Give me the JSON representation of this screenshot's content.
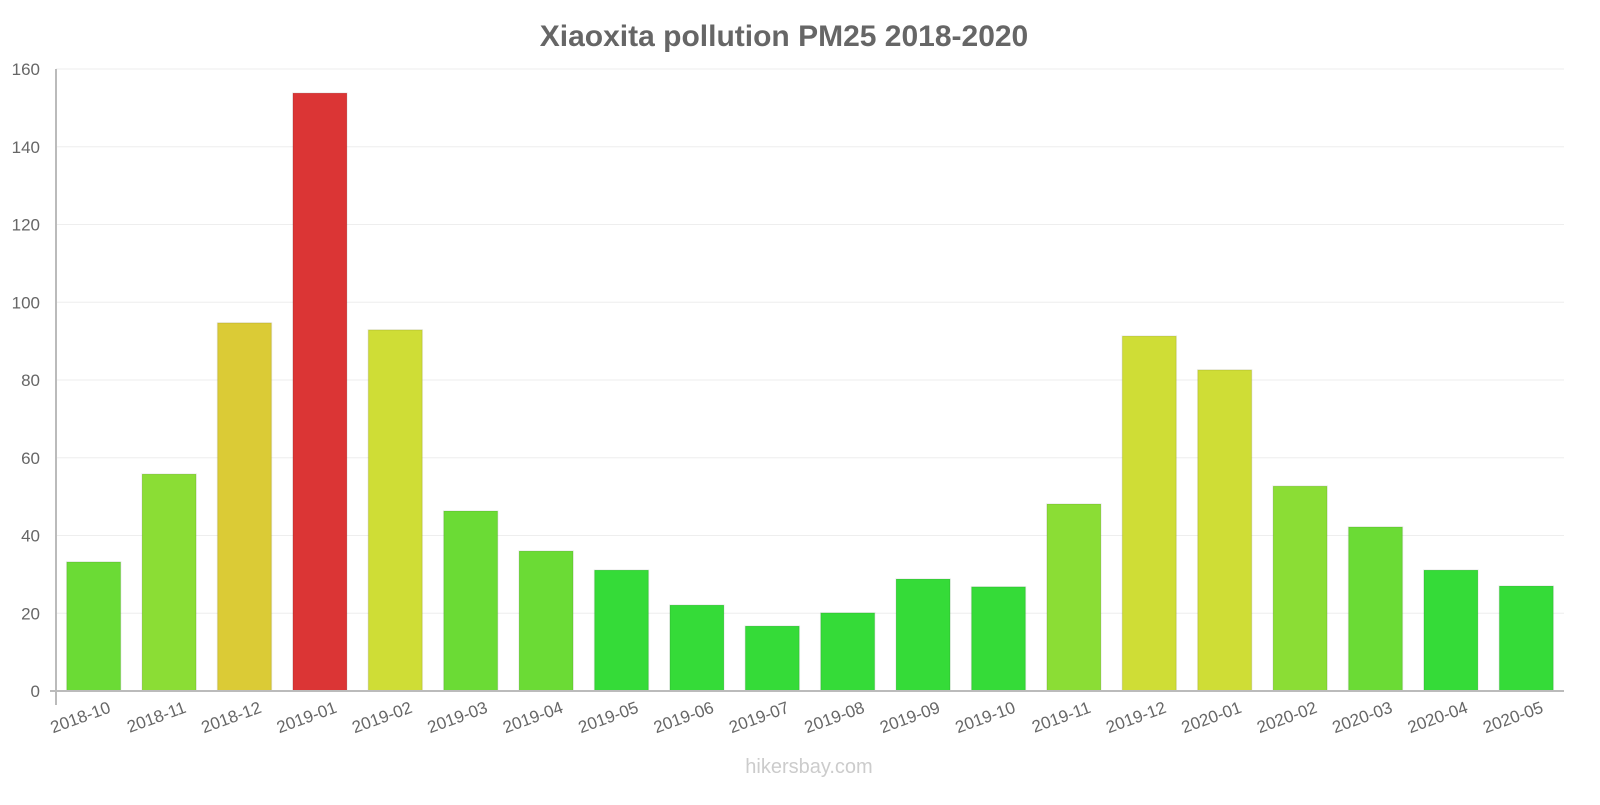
{
  "chart_data": {
    "type": "bar",
    "title": "Xiaoxita pollution PM25 2018-2020",
    "xlabel": "",
    "ylabel": "",
    "ylim": [
      0,
      160
    ],
    "yticks": [
      0,
      20,
      40,
      60,
      80,
      100,
      120,
      140,
      160
    ],
    "grid": true,
    "categories": [
      "2018-10",
      "2018-11",
      "2018-12",
      "2019-01",
      "2019-02",
      "2019-03",
      "2019-04",
      "2019-05",
      "2019-06",
      "2019-07",
      "2019-08",
      "2019-09",
      "2019-10",
      "2019-11",
      "2019-12",
      "2020-01",
      "2020-02",
      "2020-03",
      "2020-04",
      "2020-05"
    ],
    "values": [
      33.2,
      55.8,
      94.7,
      153.8,
      92.9,
      46.3,
      36.0,
      31.1,
      22.1,
      16.7,
      20.1,
      28.8,
      26.8,
      48.1,
      91.3,
      82.6,
      52.7,
      42.2,
      31.1,
      27.0
    ],
    "colors": [
      "#6bdb35",
      "#8bdd35",
      "#dbcb36",
      "#db3535",
      "#cfdd36",
      "#6bdb35",
      "#6bdb35",
      "#35db38",
      "#35db38",
      "#35db38",
      "#35db38",
      "#35db38",
      "#35db38",
      "#8bdd35",
      "#cfdd36",
      "#cfdd36",
      "#8bdd35",
      "#6bdb35",
      "#35db38",
      "#35db38"
    ]
  },
  "watermark": "hikersbay.com"
}
